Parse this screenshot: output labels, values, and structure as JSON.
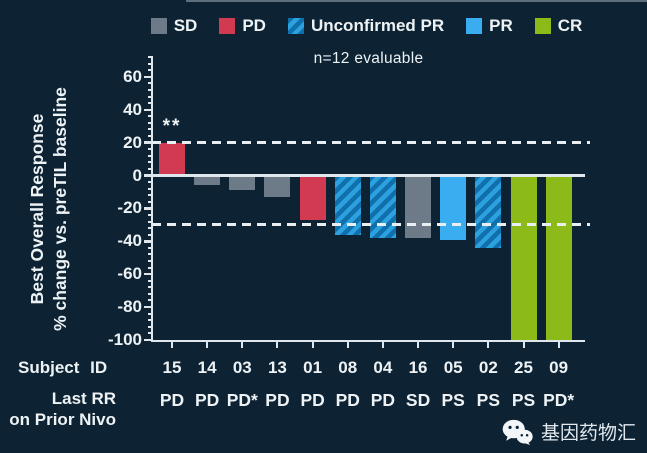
{
  "legend": {
    "items": [
      {
        "label": "SD",
        "color": "#6d7b88",
        "pattern": "solid"
      },
      {
        "label": "PD",
        "color": "#d23a52",
        "pattern": "solid"
      },
      {
        "label": "Unconfirmed PR",
        "color": "#1070ab",
        "stripe_color": "#2da1e0",
        "pattern": "striped"
      },
      {
        "label": "PR",
        "color": "#3aadf0",
        "pattern": "solid"
      },
      {
        "label": "CR",
        "color": "#8cba19",
        "pattern": "solid"
      }
    ]
  },
  "subtitle": "n=12 evaluable",
  "y_axis": {
    "title_line1": "Best Overall Response",
    "title_line2": "% change vs. preTIL baseline",
    "ticks": [
      60,
      40,
      20,
      0,
      -20,
      -40,
      -60,
      -80,
      -100
    ]
  },
  "x_axis": {
    "subject_id_label": "Subject ID",
    "last_rr_label_line1": "Last RR",
    "last_rr_label_line2": "on Prior Nivo"
  },
  "watermark": {
    "icon": "wechat-icon",
    "text": "基因药物汇"
  },
  "chart_data": {
    "type": "bar",
    "title": "",
    "subtitle": "n=12 evaluable",
    "ylabel": "Best Overall Response % change vs. preTIL baseline",
    "xlabel": "Subject ID",
    "ylim": [
      -100,
      73
    ],
    "grid": false,
    "legend_position": "top",
    "reference_lines": [
      20,
      -30,
      0
    ],
    "categories": [
      "15",
      "14",
      "03",
      "13",
      "01",
      "08",
      "04",
      "16",
      "05",
      "02",
      "25",
      "09"
    ],
    "values": [
      20,
      -6,
      -9,
      -13,
      -27,
      -36,
      -38,
      -38,
      -39,
      -44,
      -100,
      -100
    ],
    "responses": [
      "PD",
      "SD",
      "SD",
      "SD",
      "PD",
      "Unconfirmed PR",
      "Unconfirmed PR",
      "SD",
      "PR",
      "Unconfirmed PR",
      "CR",
      "CR"
    ],
    "last_rr_prior_nivo": [
      "PD",
      "PD",
      "PD*",
      "PD",
      "PD",
      "PD",
      "PD",
      "SD",
      "PS",
      "PS",
      "PS",
      "PD*"
    ],
    "annotations": [
      {
        "subject": "15",
        "text": "**"
      }
    ],
    "colors": {
      "SD": "#6d7b88",
      "PD": "#d23a52",
      "Unconfirmed PR": "#1070ab",
      "Unconfirmed PR stripe": "#2da1e0",
      "PR": "#3aadf0",
      "CR": "#8cba19",
      "background": "#0d2232",
      "axis": "#dfe7ed"
    }
  }
}
